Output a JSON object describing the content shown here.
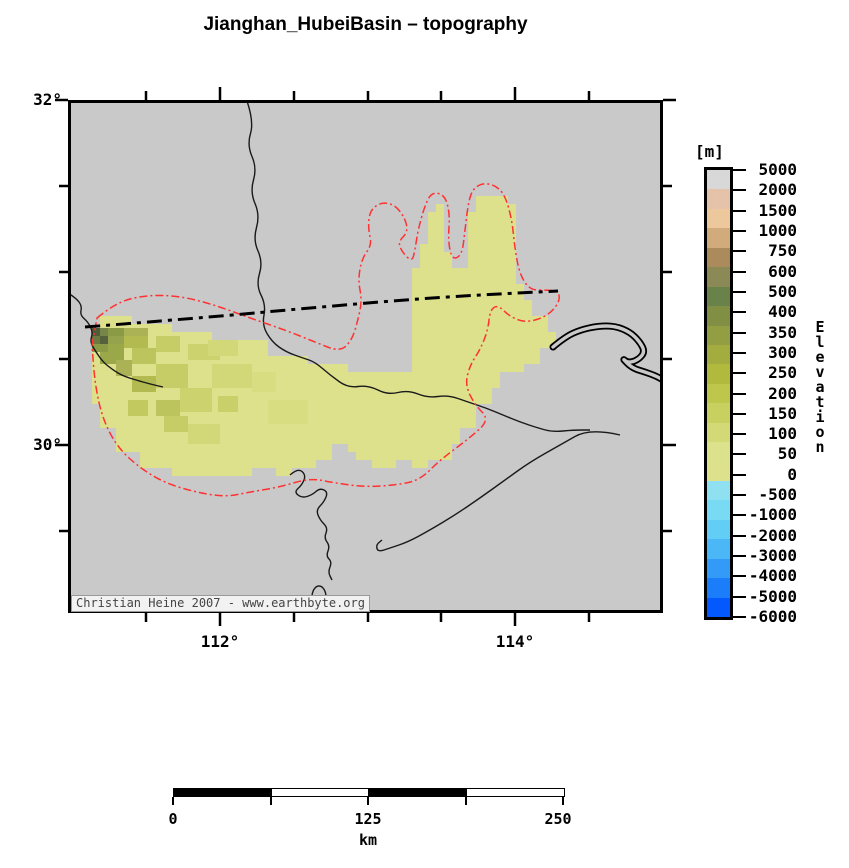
{
  "title": "Jianghan_HubeiBasin – topography",
  "map": {
    "copyright": "Christian Heine 2007 - www.earthbyte.org",
    "y_axis": {
      "labels": [
        "32°",
        "30°"
      ]
    },
    "x_axis": {
      "labels": [
        "112°",
        "114°"
      ]
    }
  },
  "colorbar": {
    "unit": "[m]",
    "axis_title": "Elevation",
    "tick_labels": [
      "5000",
      "2000",
      "1500",
      "1000",
      "750",
      "600",
      "500",
      "400",
      "350",
      "300",
      "250",
      "200",
      "150",
      "100",
      "50",
      "0",
      "-500",
      "-1000",
      "-2000",
      "-3000",
      "-4000",
      "-5000",
      "-6000"
    ],
    "segment_colors": [
      "#d8d8d8",
      "#e5c3ab",
      "#edc89d",
      "#d2ab7c",
      "#ab8b5b",
      "#8b8a57",
      "#69824a",
      "#808f44",
      "#929e41",
      "#a3ac3f",
      "#b2ba3d",
      "#bec64b",
      "#c8d05f",
      "#d2d976",
      "#dce18b",
      "#dde18c",
      "#8fe1f2",
      "#79daf3",
      "#62cdf5",
      "#4cb7f6",
      "#339af8",
      "#1b7dfa",
      "#0359fd"
    ]
  },
  "scalebar": {
    "tick_labels": [
      "0",
      "125",
      "250"
    ],
    "unit": "km"
  },
  "colors": {
    "map_background": "#c9c9c9",
    "basin_fill": "#dde18c",
    "basin_outline_red": "#ff3232",
    "river_black": "#1a1a1a",
    "frame_black": "#000000"
  }
}
